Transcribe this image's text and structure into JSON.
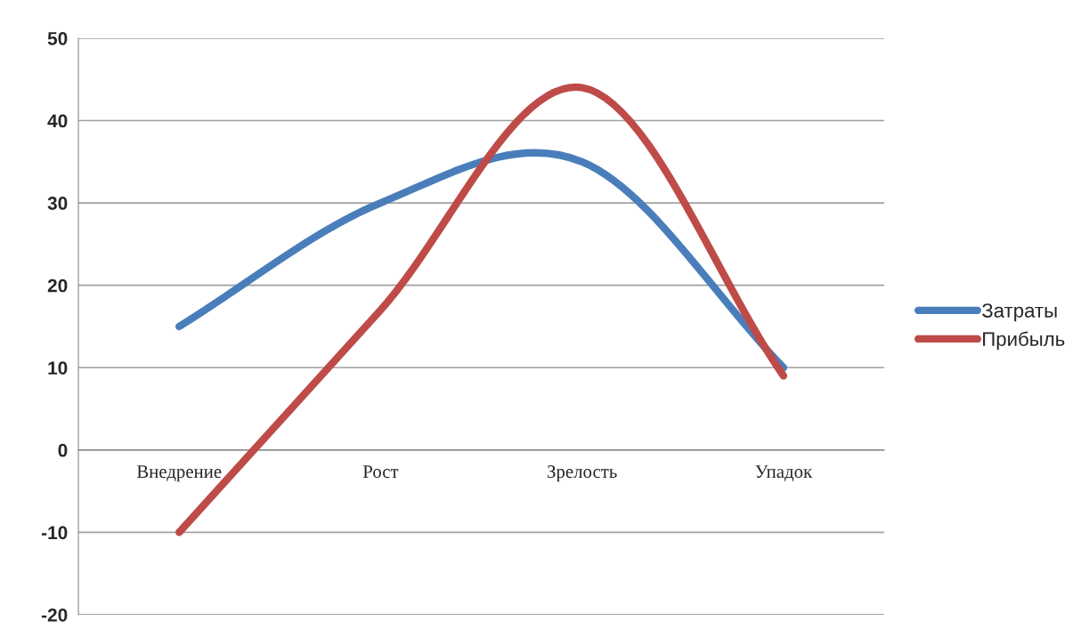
{
  "chart_data": {
    "type": "line",
    "categories": [
      "Внедрение",
      "Рост",
      "Зрелость",
      "Упадок"
    ],
    "series": [
      {
        "name": "Затраты",
        "color": "#4a7ebb",
        "values": [
          15,
          30,
          35,
          10
        ]
      },
      {
        "name": "Прибыль",
        "color": "#be4b48",
        "values": [
          -10,
          17,
          44,
          9
        ]
      }
    ],
    "ylim": [
      -20,
      50
    ],
    "yticks": [
      -20,
      -10,
      0,
      10,
      20,
      30,
      40,
      50
    ],
    "grid": "y",
    "legend": "right",
    "marker": "none",
    "line_style": "solid"
  }
}
